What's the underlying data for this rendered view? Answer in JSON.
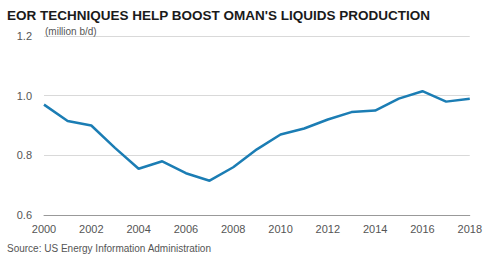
{
  "chart_data": {
    "type": "line",
    "title": "EOR TECHNIQUES HELP BOOST OMAN'S LIQUIDS PRODUCTION",
    "ylabel": "(million b/d)",
    "source": "Source: US Energy Information Administration",
    "x": [
      2000,
      2001,
      2002,
      2003,
      2004,
      2005,
      2006,
      2007,
      2008,
      2009,
      2010,
      2011,
      2012,
      2013,
      2014,
      2015,
      2016,
      2017,
      2018
    ],
    "values": [
      0.97,
      0.915,
      0.9,
      0.825,
      0.755,
      0.78,
      0.74,
      0.715,
      0.76,
      0.82,
      0.87,
      0.89,
      0.92,
      0.945,
      0.95,
      0.99,
      1.015,
      0.98,
      0.99
    ],
    "color": "#1b7db4",
    "xlim": [
      2000,
      2018
    ],
    "xticks": [
      2000,
      2002,
      2004,
      2006,
      2008,
      2010,
      2012,
      2014,
      2016,
      2018
    ],
    "ylim": [
      0.6,
      1.2
    ],
    "yticks": [
      0.6,
      0.8,
      {
        "value": 1,
        "label": "1.0"
      },
      1.2
    ],
    "grid": true
  }
}
